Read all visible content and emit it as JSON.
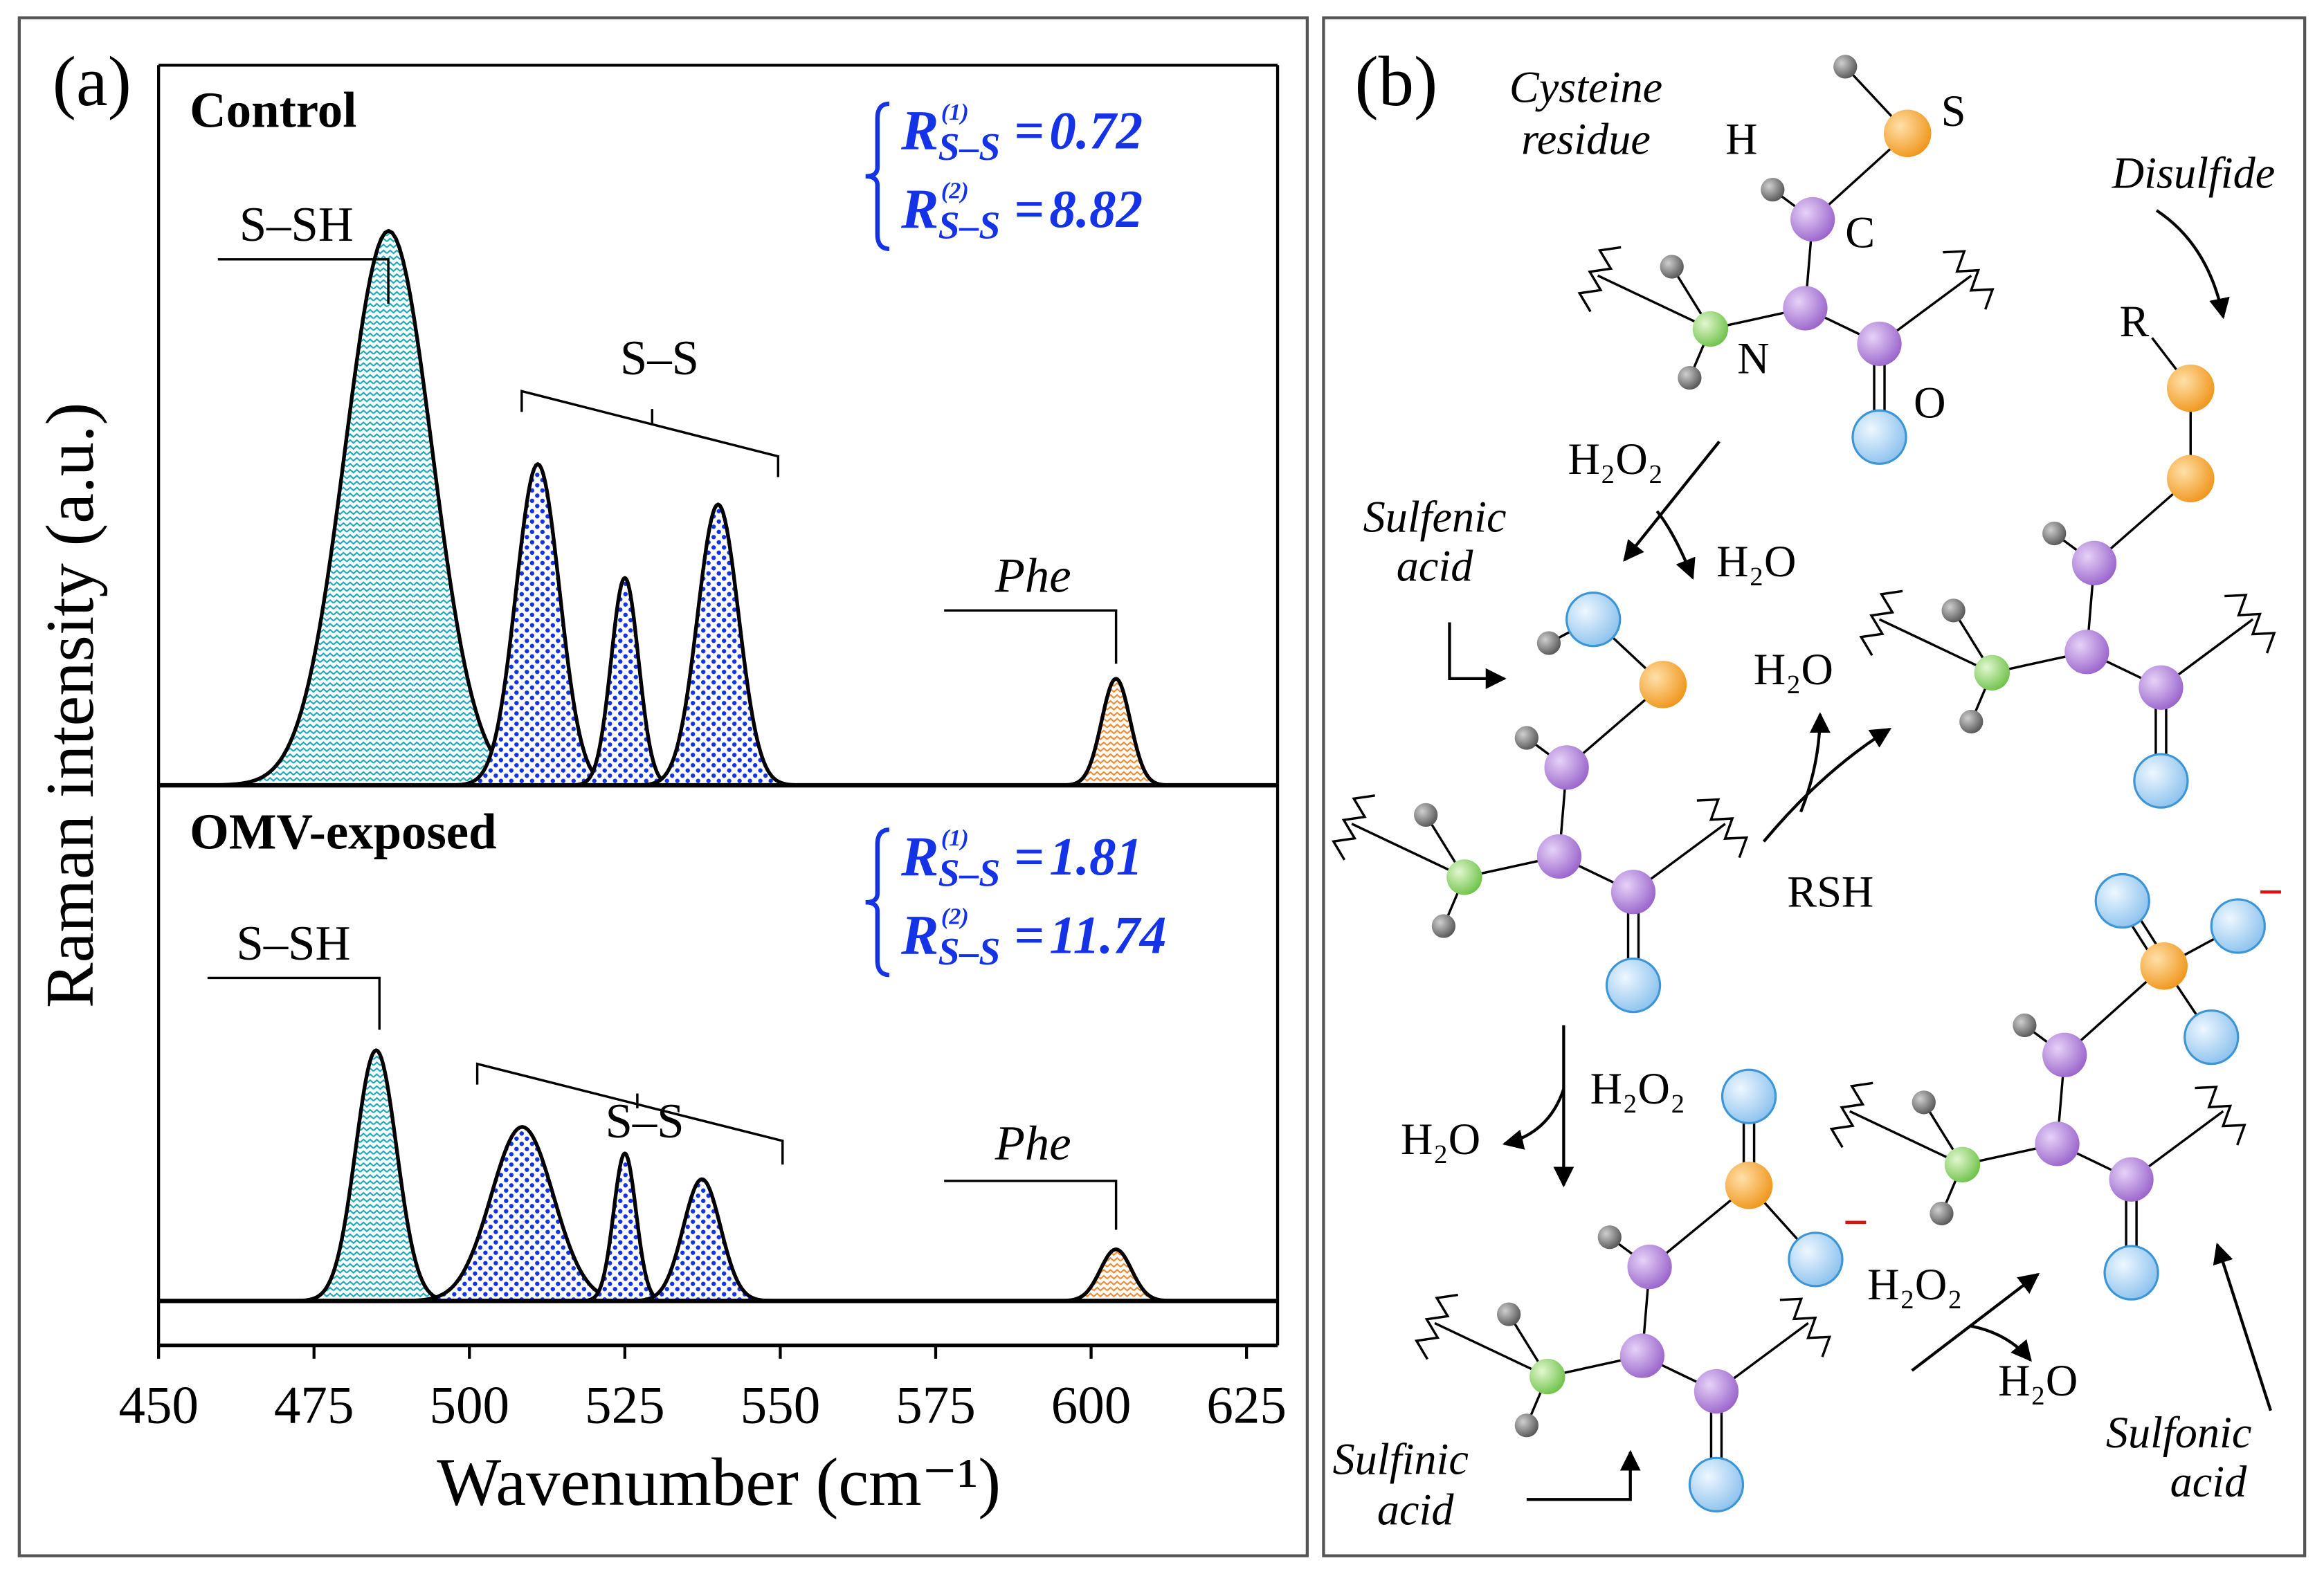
{
  "chart_data": {
    "type": "area",
    "panel_label": "(a)",
    "xlabel": "Wavenumber (cm⁻¹)",
    "ylabel": "Raman intensity (a.u.)",
    "xlim": [
      450,
      630
    ],
    "xticks": [
      450,
      475,
      500,
      525,
      550,
      575,
      600,
      625
    ],
    "groups": [
      {
        "name": "S–SH",
        "color": "#1aa8b8",
        "pattern": "zigzag"
      },
      {
        "name": "S–S",
        "color": "#1433e6",
        "pattern": "dots"
      },
      {
        "name": "Phe",
        "color": "#f08a30",
        "pattern": "zigzag"
      }
    ],
    "panels": [
      {
        "title": "Control",
        "ylim": [
          0,
          100
        ],
        "peaks": [
          {
            "group": 0,
            "center": 487,
            "height": 77,
            "width": 7
          },
          {
            "group": 1,
            "center": 511,
            "height": 44.6,
            "width": 3.5
          },
          {
            "group": 1,
            "center": 525,
            "height": 28.8,
            "width": 2.2
          },
          {
            "group": 1,
            "center": 540,
            "height": 39,
            "width": 3.3
          },
          {
            "group": 2,
            "center": 604,
            "height": 14.8,
            "width": 2.3
          }
        ],
        "ratios": [
          {
            "symbol": "R",
            "sup": "(1)",
            "sub": "S–S",
            "sign": "=",
            "value": 0.72
          },
          {
            "symbol": "R",
            "sup": "(2)",
            "sub": "S–S",
            "sign": "=",
            "value": 8.82
          }
        ]
      },
      {
        "title": "OMV-exposed",
        "ylim": [
          0,
          72
        ],
        "peaks": [
          {
            "group": 0,
            "center": 485,
            "height": 35,
            "width": 3.3
          },
          {
            "group": 1,
            "center": 508.5,
            "height": 24.3,
            "width": 5
          },
          {
            "group": 1,
            "center": 525,
            "height": 20.6,
            "width": 1.8
          },
          {
            "group": 1,
            "center": 537.4,
            "height": 17,
            "width": 3
          },
          {
            "group": 2,
            "center": 604,
            "height": 7.2,
            "width": 2.5
          }
        ],
        "ratios": [
          {
            "symbol": "R",
            "sup": "(1)",
            "sub": "S–S",
            "sign": "=",
            "value": 1.81
          },
          {
            "symbol": "R",
            "sup": "(2)",
            "sub": "S–S",
            "sign": "=",
            "value": 11.74
          }
        ]
      }
    ]
  },
  "diagram": {
    "panel_label": "(b)",
    "labels": [
      "Cysteine",
      "residue",
      "H",
      "S",
      "C",
      "N",
      "O",
      "Disulfide",
      "R",
      "H₂O₂",
      "H₂O",
      "Sulfenic",
      "acid",
      "H₂O",
      "RSH",
      "H₂O₂",
      "H₂O",
      "−",
      "−",
      "H₂O₂",
      "H₂O",
      "Sulfinic",
      "acid",
      "Sulfonic",
      "acid"
    ]
  }
}
